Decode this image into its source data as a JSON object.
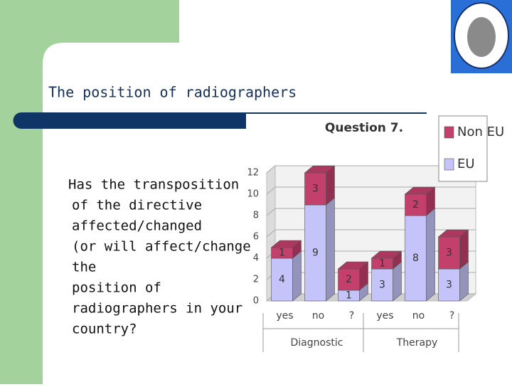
{
  "slide": {
    "title": "The position of radiographers",
    "body": [
      "Has the transposition",
      "of the directive",
      "affected/changed",
      "(or will affect/change",
      "the",
      "position of",
      "radiographers in your",
      "country?"
    ]
  },
  "chart_data": {
    "type": "bar",
    "stacked": true,
    "title": "Question 7.",
    "categories": [
      "yes",
      "no",
      "?",
      "yes",
      "no",
      "?"
    ],
    "groups": [
      {
        "label": "Diagnostic",
        "span": [
          0,
          2
        ]
      },
      {
        "label": "Therapy",
        "span": [
          3,
          5
        ]
      }
    ],
    "series": [
      {
        "name": "EU",
        "color": "#c4c4fa",
        "values": [
          4,
          9,
          1,
          3,
          8,
          3
        ]
      },
      {
        "name": "Non EU",
        "color": "#c4406c",
        "values": [
          1,
          3,
          2,
          1,
          2,
          3
        ]
      }
    ],
    "ylim": [
      0,
      12
    ],
    "yticks": [
      0,
      2,
      4,
      6,
      8,
      10,
      12
    ],
    "grid": true,
    "legend": "upper right"
  }
}
